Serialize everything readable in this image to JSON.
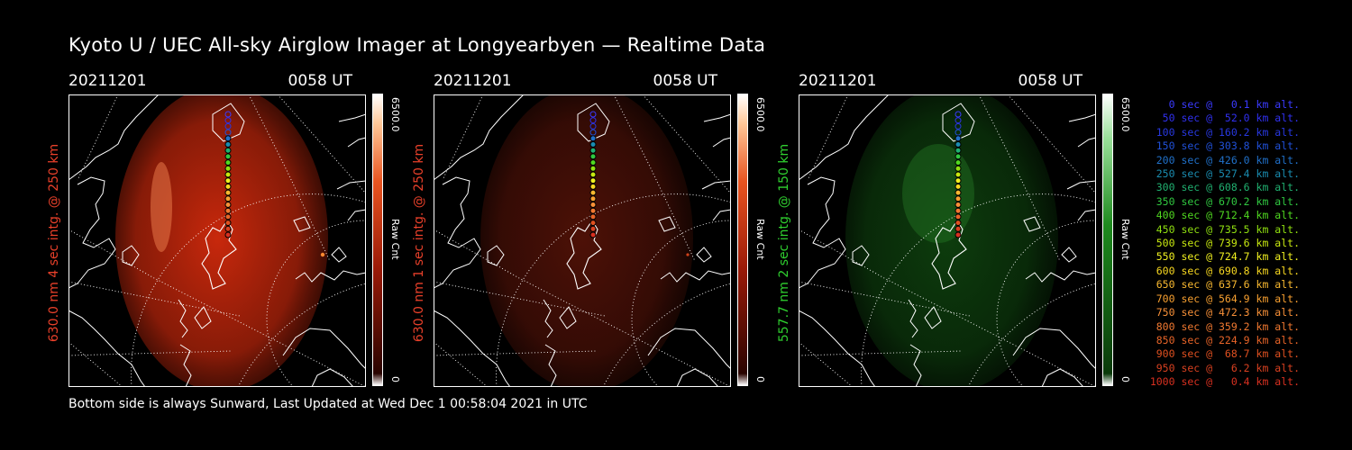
{
  "title": "Kyoto U / UEC All-sky Airglow Imager at Longyearbyen — Realtime Data",
  "footer": "Bottom side is always Sunward, Last Updated at Wed Dec  1 00:58:04 2021 in UTC",
  "panels": [
    {
      "date": "20211201",
      "time": "0058 UT",
      "ylabel": "630.0 nm 4 sec intg. @ 250 km",
      "label_color": "#e8402a",
      "cbar_max": "6500.0",
      "cbar_label": "Raw Cnt",
      "cbar_min": "0",
      "colormap": "red",
      "intensity": "bright"
    },
    {
      "date": "20211201",
      "time": "0058 UT",
      "ylabel": "630.0 nm 1 sec intg. @ 250 km",
      "label_color": "#e8402a",
      "cbar_max": "6500.0",
      "cbar_label": "Raw Cnt",
      "cbar_min": "0",
      "colormap": "red",
      "intensity": "dim"
    },
    {
      "date": "20211201",
      "time": "0058 UT",
      "ylabel": "557.7 nm 2 sec intg. @ 150 km",
      "label_color": "#2fcf2f",
      "cbar_max": "6500.0",
      "cbar_label": "Raw Cnt",
      "cbar_min": "0",
      "colormap": "green",
      "intensity": "dim"
    }
  ],
  "legend": [
    {
      "text": "   0 sec @   0.1 km alt.",
      "color": "#3a3aff"
    },
    {
      "text": "  50 sec @  52.0 km alt.",
      "color": "#3030f0"
    },
    {
      "text": " 100 sec @ 160.2 km alt.",
      "color": "#2838e0"
    },
    {
      "text": " 150 sec @ 303.8 km alt.",
      "color": "#2050d8"
    },
    {
      "text": " 200 sec @ 426.0 km alt.",
      "color": "#2070c8"
    },
    {
      "text": " 250 sec @ 527.4 km alt.",
      "color": "#1a8cb0"
    },
    {
      "text": " 300 sec @ 608.6 km alt.",
      "color": "#20b070"
    },
    {
      "text": " 350 sec @ 670.2 km alt.",
      "color": "#30c840"
    },
    {
      "text": " 400 sec @ 712.4 km alt.",
      "color": "#50d820"
    },
    {
      "text": " 450 sec @ 735.5 km alt.",
      "color": "#90e010"
    },
    {
      "text": " 500 sec @ 739.6 km alt.",
      "color": "#c8e810"
    },
    {
      "text": " 550 sec @ 724.7 km alt.",
      "color": "#f0f020"
    },
    {
      "text": " 600 sec @ 690.8 km alt.",
      "color": "#f8d820"
    },
    {
      "text": " 650 sec @ 637.6 km alt.",
      "color": "#f8b830"
    },
    {
      "text": " 700 sec @ 564.9 km alt.",
      "color": "#f8a030"
    },
    {
      "text": " 750 sec @ 472.3 km alt.",
      "color": "#f89038"
    },
    {
      "text": " 800 sec @ 359.2 km alt.",
      "color": "#f07830"
    },
    {
      "text": " 850 sec @ 224.9 km alt.",
      "color": "#e86428"
    },
    {
      "text": " 900 sec @  68.7 km alt.",
      "color": "#e05020"
    },
    {
      "text": " 950 sec @   6.2 km alt.",
      "color": "#d84020"
    },
    {
      "text": "1000 sec @   0.4 km alt.",
      "color": "#d83020"
    }
  ]
}
